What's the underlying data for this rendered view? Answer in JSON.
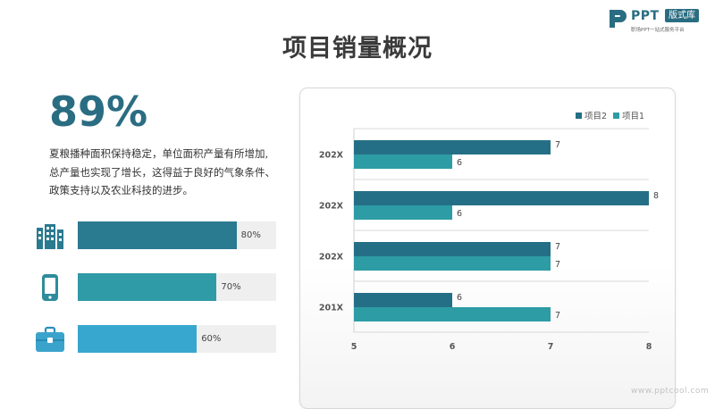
{
  "header": {
    "title": "项目销量概况",
    "logo_text": "PPT",
    "logo_badge": "版式库",
    "logo_sub": "职场PPT一站式服务平台"
  },
  "summary": {
    "percent": "89%",
    "lines": [
      "夏粮播种面积保持稳定，单位面积产量有所增加,",
      "总产量也实现了增长，这得益于良好的气象条件、",
      "政策支持以及农业科技的进步。"
    ]
  },
  "stats": [
    {
      "icon": "building-icon",
      "value": 80,
      "label": "80%",
      "color": "#2a7a90"
    },
    {
      "icon": "tablet-icon",
      "value": 70,
      "label": "70%",
      "color": "#2f9ba6"
    },
    {
      "icon": "briefcase-icon",
      "value": 60,
      "label": "60%",
      "color": "#38a7cf"
    }
  ],
  "chart_data": {
    "type": "bar",
    "orientation": "horizontal",
    "categories": [
      "202X",
      "202X",
      "202X",
      "201X"
    ],
    "series": [
      {
        "name": "项目2",
        "values": [
          7,
          8,
          7,
          6
        ],
        "color": "#256f86"
      },
      {
        "name": "项目1",
        "values": [
          6,
          6,
          7,
          7
        ],
        "color": "#2d9ca5"
      }
    ],
    "xlim": [
      5,
      8
    ],
    "x_ticks": [
      "5",
      "6",
      "7",
      "8"
    ],
    "legend": "top-right",
    "grid": "horizontal separators"
  },
  "watermark": "www.pptcool.com"
}
